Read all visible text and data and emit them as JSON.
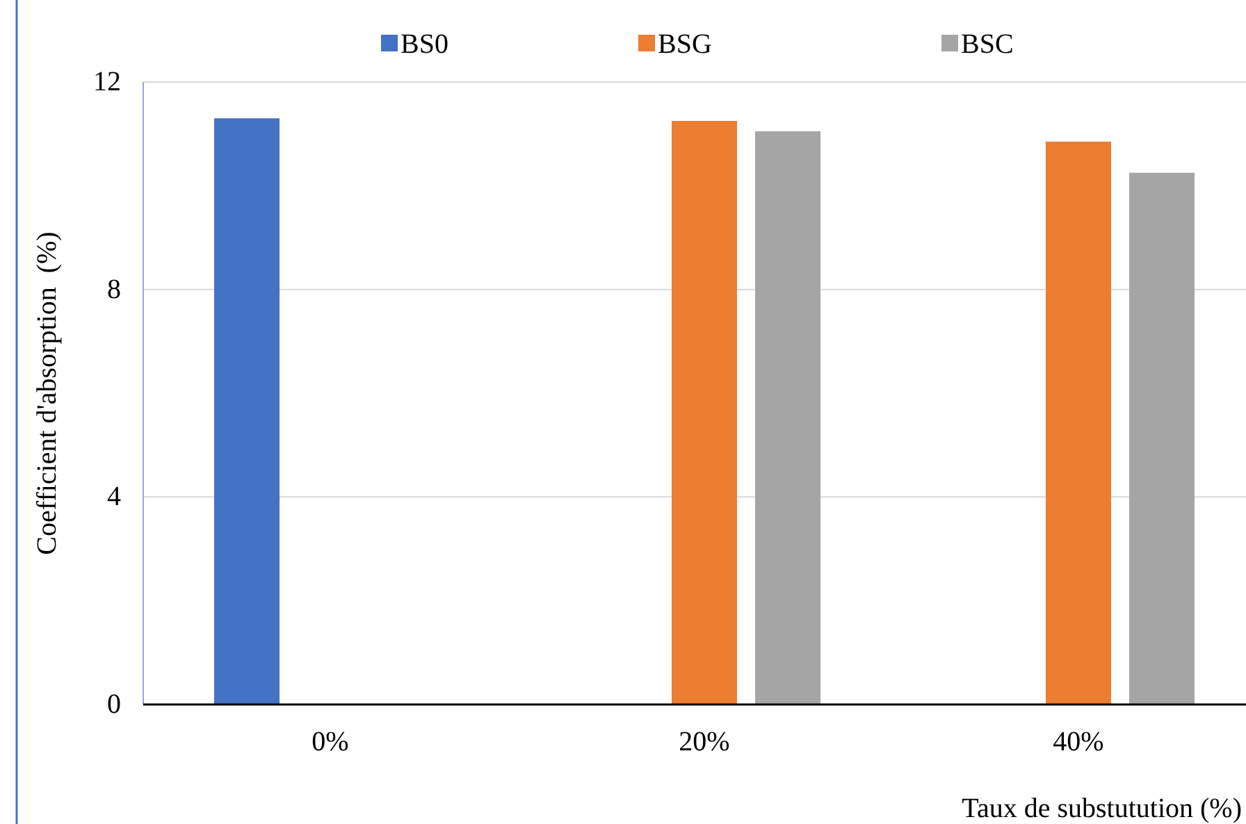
{
  "chart_data": {
    "type": "bar",
    "xlabel": "Taux de substutution (%)",
    "ylabel": "Coefficient d'absorption  (%)",
    "categories": [
      "0%",
      "20%",
      "40%"
    ],
    "series": [
      {
        "name": "BS0",
        "color": "#4472c4",
        "values": [
          11.3,
          null,
          null
        ]
      },
      {
        "name": "BSG",
        "color": "#ed7d31",
        "values": [
          null,
          11.25,
          10.85
        ]
      },
      {
        "name": "BSC",
        "color": "#a5a5a5",
        "values": [
          null,
          11.05,
          10.25
        ]
      }
    ],
    "ylim": [
      0,
      12
    ],
    "yticks": [
      0,
      4,
      8,
      12
    ],
    "grid": "y",
    "legend": "top"
  }
}
